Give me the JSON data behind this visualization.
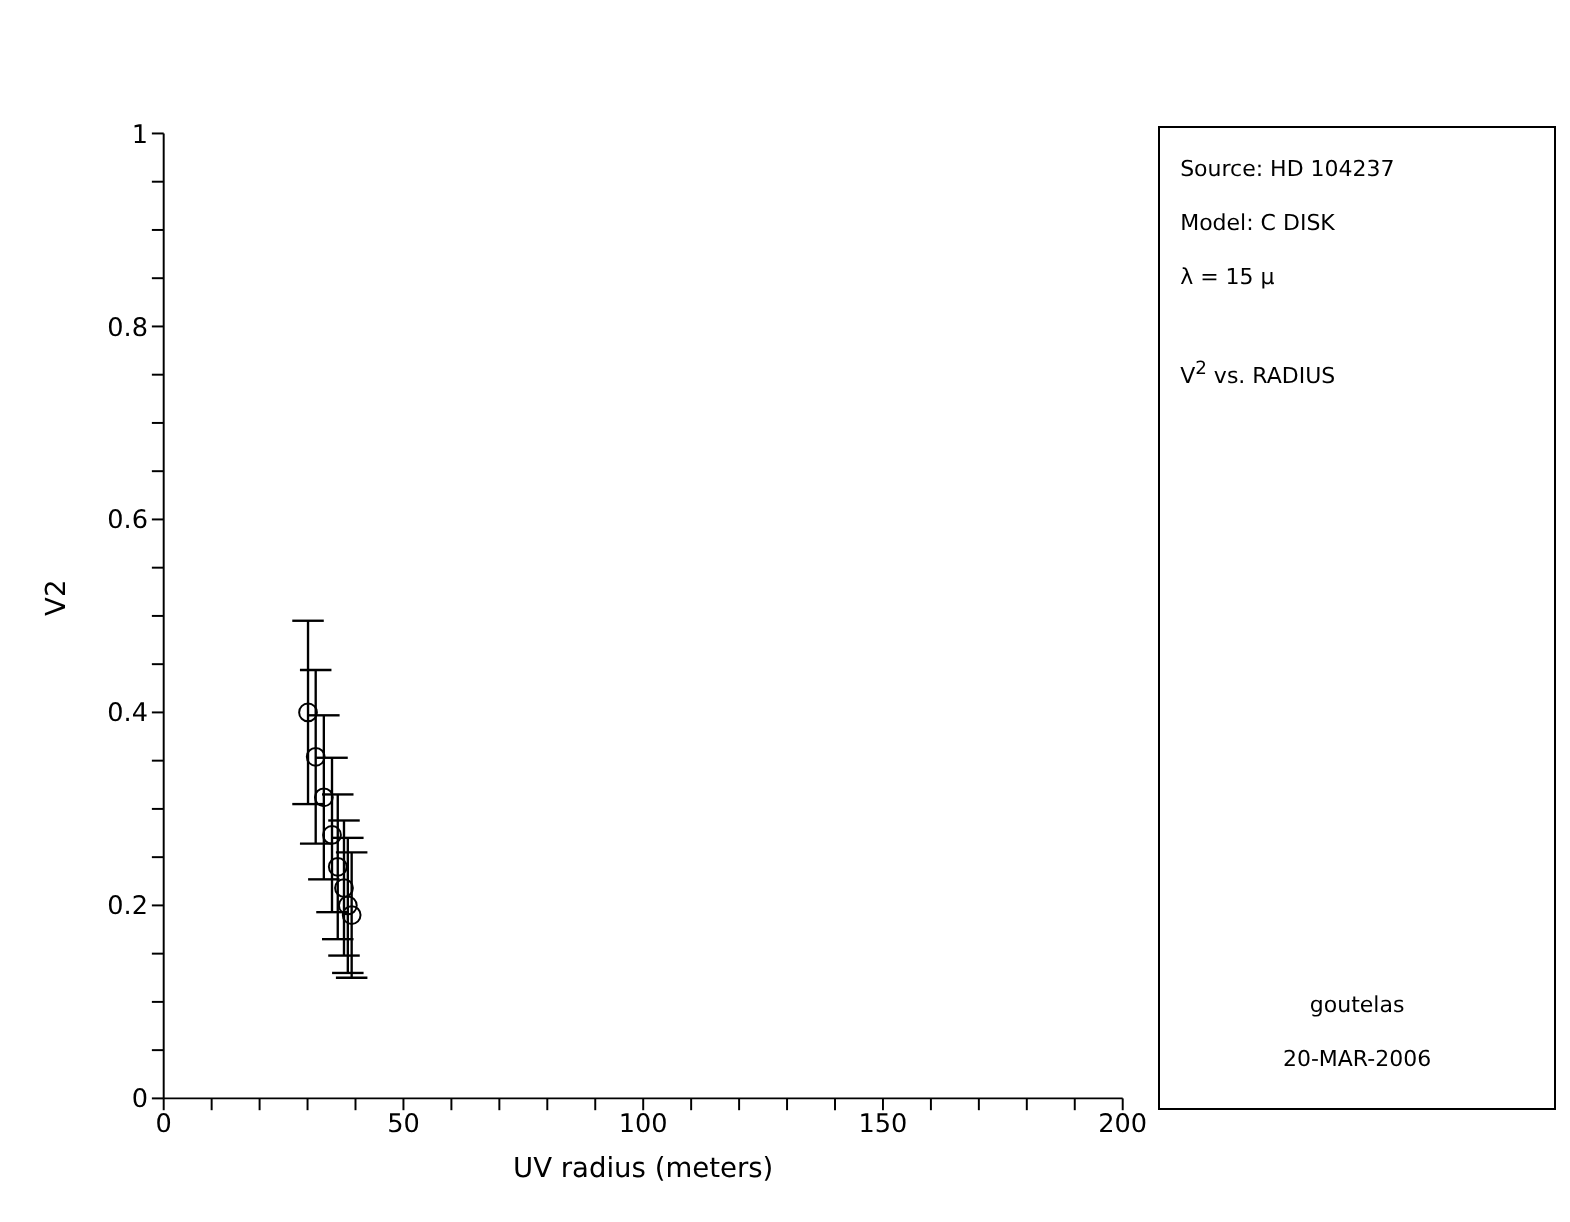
{
  "chart_data": {
    "type": "scatter",
    "xlabel": "UV radius (meters)",
    "ylabel": "V2",
    "x": [
      30.1,
      31.7,
      33.4,
      35.1,
      36.3,
      37.6,
      38.4,
      39.2
    ],
    "series": [
      {
        "color": "#000000",
        "values": [
          0.4,
          0.354,
          0.312,
          0.273,
          0.24,
          0.218,
          0.2,
          0.19
        ],
        "errors": [
          0.095,
          0.09,
          0.085,
          0.08,
          0.075,
          0.07,
          0.07,
          0.065
        ]
      }
    ],
    "xlim": [
      0,
      200
    ],
    "xticks": [
      0,
      {
        "value": 10,
        "label": null
      },
      {
        "value": 20,
        "label": null
      },
      {
        "value": 30,
        "label": null
      },
      {
        "value": 40,
        "label": null
      },
      50,
      {
        "value": 60,
        "label": null
      },
      {
        "value": 70,
        "label": null
      },
      {
        "value": 80,
        "label": null
      },
      {
        "value": 90,
        "label": null
      },
      100,
      {
        "value": 110,
        "label": null
      },
      {
        "value": 120,
        "label": null
      },
      {
        "value": 130,
        "label": null
      },
      {
        "value": 140,
        "label": null
      },
      150,
      {
        "value": 160,
        "label": null
      },
      {
        "value": 170,
        "label": null
      },
      {
        "value": 180,
        "label": null
      },
      {
        "value": 190,
        "label": null
      },
      200
    ],
    "ylim": [
      0,
      1
    ],
    "yticks": [
      0,
      {
        "value": 0.05,
        "label": null
      },
      {
        "value": 0.1,
        "label": null
      },
      {
        "value": 0.15,
        "label": null
      },
      0.2,
      {
        "value": 0.25,
        "label": null
      },
      {
        "value": 0.3,
        "label": null
      },
      {
        "value": 0.35,
        "label": null
      },
      0.4,
      {
        "value": 0.45,
        "label": null
      },
      {
        "value": 0.5,
        "label": null
      },
      {
        "value": 0.55,
        "label": null
      },
      0.6,
      {
        "value": 0.65,
        "label": null
      },
      {
        "value": 0.7,
        "label": null
      },
      {
        "value": 0.75,
        "label": null
      },
      0.8,
      {
        "value": 0.85,
        "label": null
      },
      {
        "value": 0.9,
        "label": null
      },
      {
        "value": 0.95,
        "label": null
      },
      1
    ],
    "marker": "circle",
    "grid": false,
    "legend": false,
    "annotations": [
      "Source: HD 104237",
      "Model: C DISK",
      "λ = 15 μ",
      "V$^{2}$ vs. RADIUS",
      "goutelas",
      "20-MAR-2006"
    ]
  }
}
